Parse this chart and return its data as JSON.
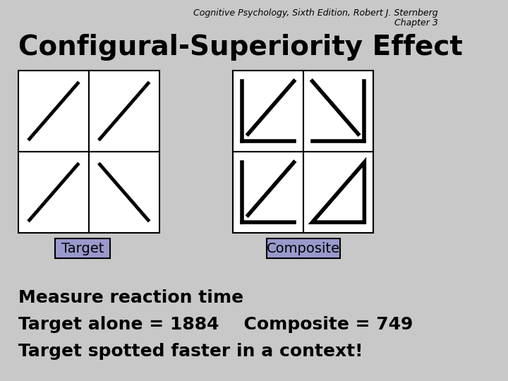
{
  "title": "Configural-Superiority Effect",
  "header_line1": "Cognitive Psychology, Sixth Edition, Robert J. Sternberg",
  "header_line2": "Chapter 3",
  "label_target": "Target",
  "label_composite": "Composite",
  "text_line1": "Measure reaction time",
  "text_line2": "Target alone = 1884    Composite = 749",
  "text_line3": "Target spotted faster in a context!",
  "bg_color": "#c8c8c8",
  "box_bg": "#9999cc",
  "line_color": "#000000",
  "white": "#ffffff",
  "line_width": 3.5,
  "header_fontsize": 9,
  "title_fontsize": 28,
  "label_fontsize": 14,
  "body_fontsize": 18
}
